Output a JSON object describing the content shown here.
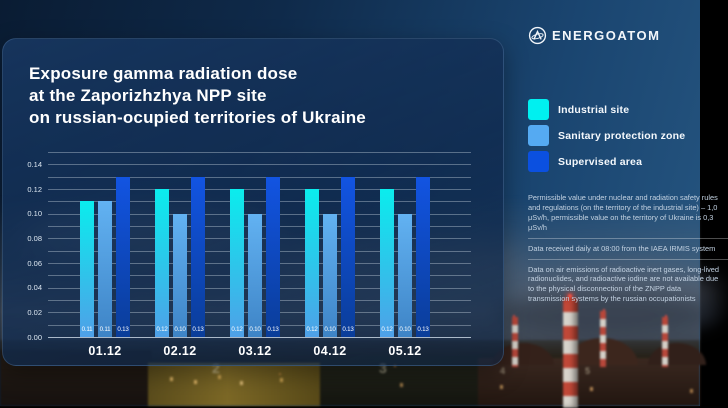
{
  "logo": {
    "brand": "ENERGOATOM"
  },
  "title": {
    "lines": [
      "Exposure gamma radiation dose",
      "at the Zaporizhzhya NPP site",
      "on russian-ocupied territories of Ukraine"
    ]
  },
  "legend": {
    "items": [
      {
        "label": "Industrial site",
        "color": "#00F0F0"
      },
      {
        "label": "Sanitary protection zone",
        "color": "#55AAF2"
      },
      {
        "label": "Supervised area",
        "color": "#0B50E0"
      }
    ]
  },
  "notes": [
    {
      "text": "Permissible value under nuclear and radiation safety rules and regulations (on the territory of the industrial site) – 1,0 μSv/h, permissible value on the territory of Ukraine is 0,3 μSv/h"
    },
    {
      "text": "Data received daily at 08:00 from the IAEA IRMIS system"
    },
    {
      "text": "Data on air emissions of radioactive inert gases, long-lived radionuclides, and radioactive iodine are not available due to the physical disconnection of the ZNPP data transmission systems by the russian occupationists"
    }
  ],
  "chart_data": {
    "type": "bar",
    "title": "Exposure gamma radiation dose at the Zaporizhzhya NPP site",
    "categories": [
      "01.12",
      "02.12",
      "03.12",
      "04.12",
      "05.12"
    ],
    "series": [
      {
        "name": "Industrial site",
        "color_top": "#0AEDED",
        "color_bottom": "#4FA0E8",
        "values": [
          0.11,
          0.12,
          0.12,
          0.12,
          0.12
        ]
      },
      {
        "name": "Sanitary protection zone",
        "color_top": "#62B2F2",
        "color_bottom": "#3E84C6",
        "values": [
          0.11,
          0.1,
          0.1,
          0.1,
          0.1
        ]
      },
      {
        "name": "Supervised area",
        "color_top": "#1254E2",
        "color_bottom": "#0A3D99",
        "values": [
          0.13,
          0.13,
          0.13,
          0.13,
          0.13
        ]
      }
    ],
    "ylim": [
      0,
      0.15
    ],
    "ytick_step": 0.01,
    "yticks_labeled": [
      "0.00",
      "0.02",
      "0.04",
      "0.06",
      "0.08",
      "0.10",
      "0.12",
      "0.14"
    ],
    "grid": true,
    "legend_position": "right",
    "value_label_decimals": 2
  },
  "background": {
    "unit_numbers": [
      "2",
      "3",
      "4",
      "5"
    ]
  }
}
